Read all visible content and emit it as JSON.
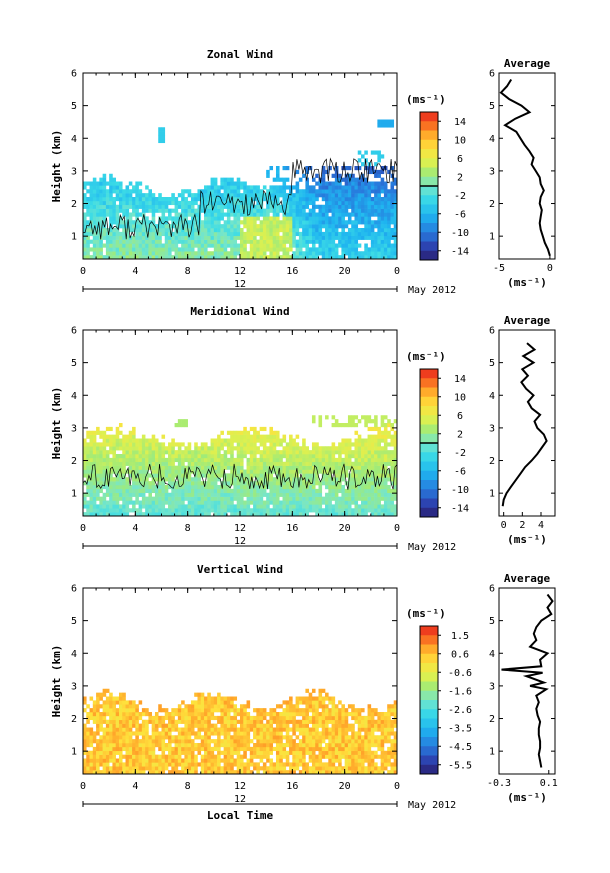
{
  "figure": {
    "date_label": "May 2012",
    "day_label": "12",
    "time_axis_label": "Local Time",
    "unit_label": "(ms⁻¹)",
    "average_title": "Average"
  },
  "chart_data": [
    {
      "type": "heatmap",
      "title": "Zonal Wind",
      "xlabel": "",
      "ylabel": "Height (km)",
      "xlim": [
        0,
        24
      ],
      "ylim": [
        0.3,
        6
      ],
      "xticks": [
        "0",
        "4",
        "8",
        "12",
        "16",
        "20",
        "0"
      ],
      "yticks": [
        1,
        2,
        3,
        4,
        5,
        6
      ],
      "colorbar": {
        "unit": "(ms⁻¹)",
        "ticks": [
          "14",
          "10",
          "6",
          "2",
          "-2",
          "-6",
          "-10",
          "-14"
        ],
        "range": [
          -16,
          16
        ],
        "zero_line": 0
      },
      "profile": {
        "title": "Average",
        "xlabel": "(ms⁻¹)",
        "xlim": [
          -5,
          0.5
        ],
        "xticks": [
          "-5",
          "0"
        ],
        "heights": [
          0.4,
          0.6,
          0.8,
          1.0,
          1.2,
          1.4,
          1.6,
          1.8,
          2.0,
          2.2,
          2.4,
          2.6,
          2.8,
          3.0,
          3.2,
          3.4,
          3.6,
          3.8,
          4.0,
          4.2,
          4.4,
          4.6,
          4.8,
          5.0,
          5.2,
          5.4,
          5.6,
          5.8
        ],
        "values": [
          0.0,
          -0.2,
          -0.5,
          -0.7,
          -0.9,
          -1.0,
          -0.9,
          -0.8,
          -1.0,
          -0.9,
          -0.6,
          -0.9,
          -1.0,
          -1.4,
          -1.8,
          -1.6,
          -2.0,
          -2.5,
          -2.9,
          -3.3,
          -4.4,
          -3.4,
          -2.0,
          -2.8,
          -4.0,
          -4.8,
          -4.2,
          -3.8
        ]
      }
    },
    {
      "type": "heatmap",
      "title": "Meridional Wind",
      "xlabel": "",
      "ylabel": "Height (km)",
      "xlim": [
        0,
        24
      ],
      "ylim": [
        0.3,
        6
      ],
      "xticks": [
        "0",
        "4",
        "8",
        "12",
        "16",
        "20",
        "0"
      ],
      "yticks": [
        1,
        2,
        3,
        4,
        5,
        6
      ],
      "colorbar": {
        "unit": "(ms⁻¹)",
        "ticks": [
          "14",
          "10",
          "6",
          "2",
          "-2",
          "-6",
          "-10",
          "-14"
        ],
        "range": [
          -16,
          16
        ],
        "zero_line": 0
      },
      "profile": {
        "title": "Average",
        "xlabel": "(ms⁻¹)",
        "xlim": [
          -0.5,
          5.5
        ],
        "xticks": [
          "0",
          "2",
          "4"
        ],
        "heights": [
          0.6,
          0.8,
          1.0,
          1.2,
          1.4,
          1.6,
          1.8,
          2.0,
          2.2,
          2.4,
          2.6,
          2.8,
          3.0,
          3.2,
          3.4,
          3.6,
          3.8,
          4.0,
          4.2,
          4.4,
          4.6,
          4.8,
          5.0,
          5.2,
          5.4,
          5.6
        ],
        "values": [
          -0.1,
          0.0,
          0.3,
          0.8,
          1.3,
          1.8,
          2.3,
          3.0,
          3.6,
          4.1,
          4.6,
          4.3,
          3.6,
          3.3,
          3.9,
          3.0,
          2.6,
          3.2,
          2.4,
          1.9,
          2.6,
          2.0,
          3.2,
          2.1,
          3.3,
          2.5
        ]
      }
    },
    {
      "type": "heatmap",
      "title": "Vertical Wind",
      "xlabel": "Local Time",
      "ylabel": "Height (km)",
      "xlim": [
        0,
        24
      ],
      "ylim": [
        0.3,
        6
      ],
      "xticks": [
        "0",
        "4",
        "8",
        "12",
        "16",
        "20",
        "0"
      ],
      "yticks": [
        1,
        2,
        3,
        4,
        5,
        6
      ],
      "colorbar": {
        "unit": "(ms⁻¹)",
        "ticks": [
          "1.5",
          "0.6",
          "-0.6",
          "-1.6",
          "-2.6",
          "-3.5",
          "-4.5",
          "-5.5"
        ],
        "range": [
          -6,
          2
        ],
        "zero_line": null
      },
      "profile": {
        "title": "Average",
        "xlabel": "(ms⁻¹)",
        "xlim": [
          -0.3,
          0.15
        ],
        "xticks": [
          "-0.3",
          "0.1"
        ],
        "heights": [
          0.5,
          0.7,
          0.9,
          1.1,
          1.3,
          1.5,
          1.7,
          1.9,
          2.1,
          2.3,
          2.5,
          2.7,
          2.9,
          3.0,
          3.1,
          3.3,
          3.4,
          3.5,
          3.6,
          3.8,
          4.0,
          4.2,
          4.4,
          4.6,
          4.8,
          5.0,
          5.2,
          5.4,
          5.6,
          5.8
        ],
        "values": [
          0.04,
          0.03,
          0.02,
          0.03,
          0.03,
          0.02,
          0.02,
          0.03,
          0.01,
          0.0,
          0.02,
          0.0,
          0.08,
          -0.05,
          0.06,
          -0.08,
          0.05,
          -0.28,
          0.04,
          0.03,
          0.09,
          -0.05,
          0.0,
          -0.02,
          0.0,
          0.04,
          0.12,
          0.09,
          0.13,
          0.09
        ]
      }
    }
  ]
}
